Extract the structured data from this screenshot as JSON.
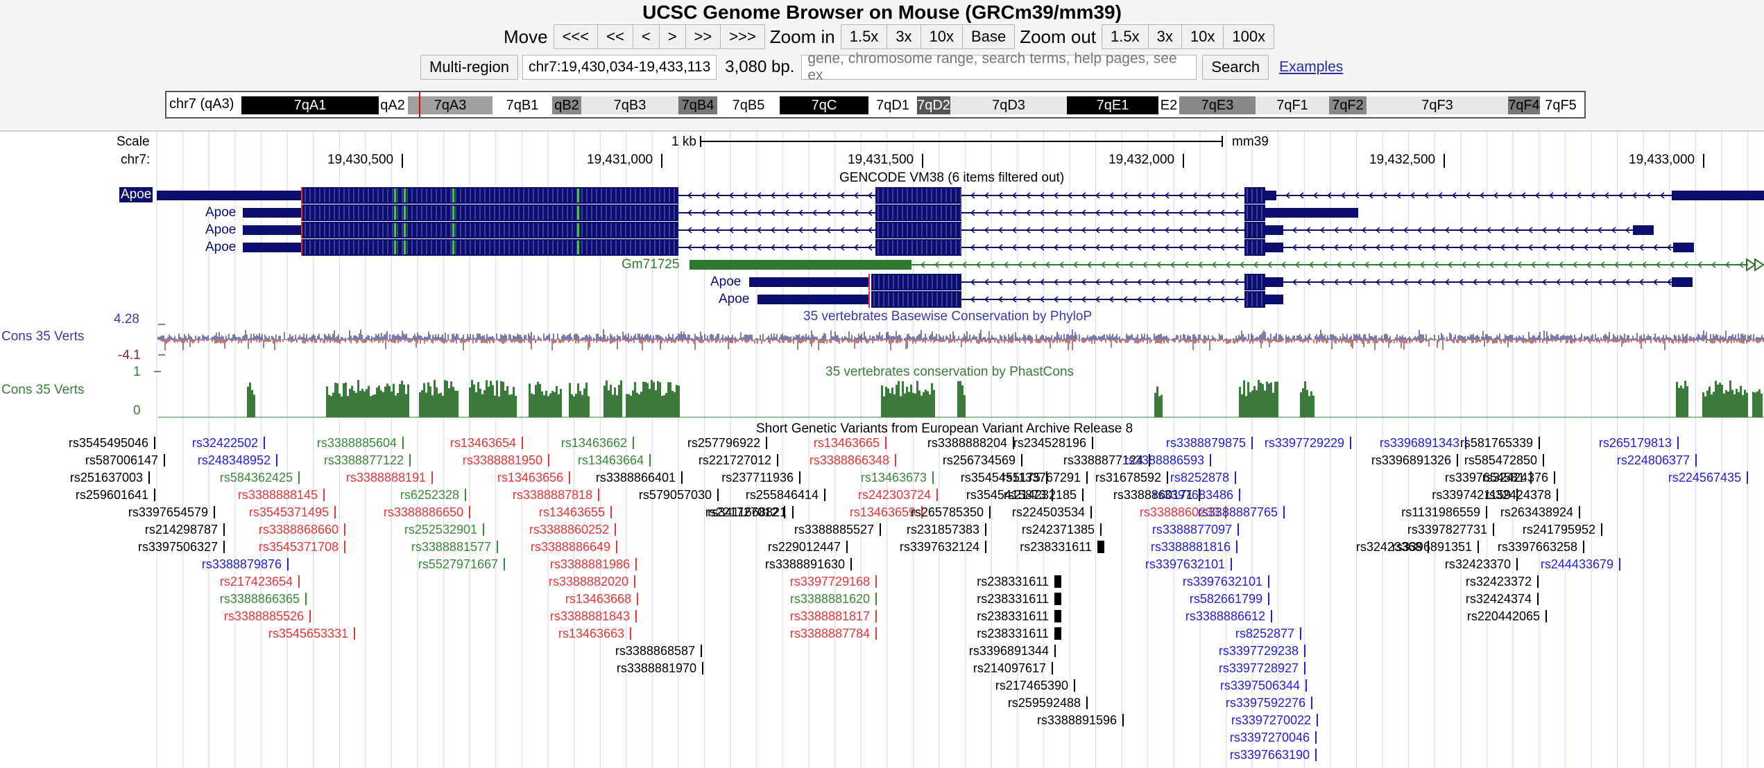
{
  "title": "UCSC Genome Browser on Mouse (GRCm39/mm39)",
  "nav": {
    "move_label": "Move",
    "move_buttons": [
      "<<<",
      "<<",
      "<",
      ">",
      ">>",
      ">>>"
    ],
    "zoom_in_label": "Zoom in",
    "zoom_in_buttons": [
      "1.5x",
      "3x",
      "10x",
      "Base"
    ],
    "zoom_out_label": "Zoom out",
    "zoom_out_buttons": [
      "1.5x",
      "3x",
      "10x",
      "100x"
    ]
  },
  "position": {
    "multi_region": "Multi-region",
    "coords": "chr7:19,430,034-19,433,113",
    "size": "3,080 bp.",
    "search_placeholder": "gene, chromosome range, search terms, help pages, see ex",
    "search_button": "Search",
    "examples_link": "Examples"
  },
  "ideogram": {
    "label": "chr7 (qA3)",
    "bands": [
      "7qA1",
      "qA2",
      "7qA3",
      "7qB1",
      "qB2",
      "7qB3",
      "7qB4",
      "7qB5",
      "7qC",
      "7qD1",
      "7qD2",
      "7qD3",
      "7qE1",
      "E2",
      "7qE3",
      "7qF1",
      "7qF2",
      "7qF3",
      "7qF4",
      "7qF5"
    ]
  },
  "tracks": {
    "scale_label": "Scale",
    "chrom_label": "chr7:",
    "scale_bar": "1 kb",
    "assembly": "mm39",
    "positions": [
      "19,430,500",
      "19,431,000",
      "19,431,500",
      "19,432,000",
      "19,432,500",
      "19,433,000"
    ],
    "gencode_title": "GENCODE VM38 (6 items filtered out)",
    "gene_apoe": "Apoe",
    "gene_gm": "Gm71725",
    "phylop_title": "35 vertebrates Basewise Conservation by PhyloP",
    "phylop_label": "Cons 35 Verts",
    "phylop_max": "4.28",
    "phylop_min": "-4.1",
    "phastcons_title": "35 vertebrates conservation by PhastCons",
    "phastcons_label": "Cons 35 Verts",
    "phastcons_max": "1",
    "phastcons_min": "0",
    "eva_title": "Short Genetic Variants from European Variant Archive Release 8"
  },
  "colors": {
    "gene": "#0d0d6e",
    "gm": "#2d7a2d",
    "phylop_pos": "#23237a",
    "phylop_neg": "#8b2020",
    "phastcons": "#3b7a3b",
    "snp_black": "#000000",
    "snp_blue": "#2323d0",
    "snp_green": "#3a8a3a",
    "snp_red": "#e03a3a"
  },
  "snps": [
    {
      "t": "rs3545495046",
      "c": "k"
    },
    {
      "t": "rs587006147",
      "c": "k"
    },
    {
      "t": "rs251637003",
      "c": "k"
    },
    {
      "t": "rs259601641",
      "c": "k"
    },
    {
      "t": "rs3397654579",
      "c": "k"
    },
    {
      "t": "rs214298787",
      "c": "k"
    },
    {
      "t": "rs3397506327",
      "c": "k"
    },
    {
      "t": "rs32422502",
      "c": "b"
    },
    {
      "t": "rs248348952",
      "c": "b"
    },
    {
      "t": "rs584362425",
      "c": "g"
    },
    {
      "t": "rs3388888145",
      "c": "r"
    },
    {
      "t": "rs3545371495",
      "c": "r"
    },
    {
      "t": "rs3388868660",
      "c": "r"
    },
    {
      "t": "rs3545371708",
      "c": "r"
    },
    {
      "t": "rs3388879876",
      "c": "b"
    },
    {
      "t": "rs217423654",
      "c": "r"
    },
    {
      "t": "rs3388866365",
      "c": "g"
    },
    {
      "t": "rs3388885526",
      "c": "r"
    },
    {
      "t": "rs3545653331",
      "c": "r"
    },
    {
      "t": "rs3388885604",
      "c": "g"
    },
    {
      "t": "rs3388877122",
      "c": "g"
    },
    {
      "t": "rs3388888191",
      "c": "r"
    },
    {
      "t": "rs6252328",
      "c": "g"
    },
    {
      "t": "rs3388886650",
      "c": "r"
    },
    {
      "t": "rs252532901",
      "c": "g"
    },
    {
      "t": "rs3388881577",
      "c": "g"
    },
    {
      "t": "rs5527971667",
      "c": "g"
    },
    {
      "t": "rs13463654",
      "c": "r"
    },
    {
      "t": "rs3388881950",
      "c": "r"
    },
    {
      "t": "rs13463656",
      "c": "r"
    },
    {
      "t": "rs3388887818",
      "c": "r"
    },
    {
      "t": "rs13463655",
      "c": "r"
    },
    {
      "t": "rs3388860252",
      "c": "r"
    },
    {
      "t": "rs3388886649",
      "c": "r"
    },
    {
      "t": "rs3388881986",
      "c": "r"
    },
    {
      "t": "rs3388882020",
      "c": "r"
    },
    {
      "t": "rs13463668",
      "c": "r"
    },
    {
      "t": "rs3388881843",
      "c": "r"
    },
    {
      "t": "rs13463663",
      "c": "r"
    },
    {
      "t": "rs13463662",
      "c": "g"
    },
    {
      "t": "rs13463664",
      "c": "g"
    },
    {
      "t": "rs3388866401",
      "c": "k"
    },
    {
      "t": "rs579057030",
      "c": "k"
    },
    {
      "t": "rs3411668821",
      "c": "k"
    },
    {
      "t": "rs3388868587",
      "c": "k"
    },
    {
      "t": "rs3388881970",
      "c": "k"
    },
    {
      "t": "rs257796922",
      "c": "k"
    },
    {
      "t": "rs221727012",
      "c": "k"
    },
    {
      "t": "rs237711936",
      "c": "k"
    },
    {
      "t": "rs255846414",
      "c": "k"
    },
    {
      "t": "rs221727012",
      "c": "k"
    },
    {
      "t": "rs3388885527",
      "c": "k"
    },
    {
      "t": "rs229012447",
      "c": "k"
    },
    {
      "t": "rs3388891630",
      "c": "k"
    },
    {
      "t": "rs13463665",
      "c": "r"
    },
    {
      "t": "rs3388866348",
      "c": "r"
    },
    {
      "t": "rs13463673",
      "c": "g"
    },
    {
      "t": "rs242303724",
      "c": "r"
    },
    {
      "t": "rs13463659",
      "c": "r"
    },
    {
      "t": "rs3397729168",
      "c": "r"
    },
    {
      "t": "rs3388881620",
      "c": "g"
    },
    {
      "t": "rs3388881817",
      "c": "r"
    },
    {
      "t": "rs3388887784",
      "c": "r"
    },
    {
      "t": "rs3388888204",
      "c": "k"
    },
    {
      "t": "rs256734569",
      "c": "k"
    },
    {
      "t": "rs3545455175",
      "c": "k"
    },
    {
      "t": "rs3545415873",
      "c": "k"
    },
    {
      "t": "rs265785350",
      "c": "k"
    },
    {
      "t": "rs231857383",
      "c": "k"
    },
    {
      "t": "rs3397632124",
      "c": "k"
    },
    {
      "t": "rs234528196",
      "c": "k"
    },
    {
      "t": "rs1133767291",
      "c": "k"
    },
    {
      "t": "rs214232185",
      "c": "k"
    },
    {
      "t": "rs224503534",
      "c": "k"
    },
    {
      "t": "rs242371385",
      "c": "k"
    },
    {
      "t": "rs238331611",
      "c": "k"
    },
    {
      "t": "rs238331611",
      "c": "k"
    },
    {
      "t": "rs238331611",
      "c": "k"
    },
    {
      "t": "rs238331611",
      "c": "k"
    },
    {
      "t": "rs238331611",
      "c": "k"
    },
    {
      "t": "rs3396891344",
      "c": "k"
    },
    {
      "t": "rs214097617",
      "c": "k"
    },
    {
      "t": "rs217465390",
      "c": "k"
    },
    {
      "t": "rs259592488",
      "c": "k"
    },
    {
      "t": "rs3388891596",
      "c": "k"
    },
    {
      "t": "rs3388877124",
      "c": "k"
    },
    {
      "t": "rs31678592",
      "c": "k"
    },
    {
      "t": "rs3388860171",
      "c": "k"
    },
    {
      "t": "rs3388860233",
      "c": "r"
    },
    {
      "t": "rs3388879875",
      "c": "b"
    },
    {
      "t": "rs3388886593",
      "c": "b"
    },
    {
      "t": "rs8252878",
      "c": "b"
    },
    {
      "t": "rs3397683486",
      "c": "b"
    },
    {
      "t": "rs3388887765",
      "c": "b"
    },
    {
      "t": "rs3388877097",
      "c": "b"
    },
    {
      "t": "rs3388881816",
      "c": "b"
    },
    {
      "t": "rs3397632101",
      "c": "b"
    },
    {
      "t": "rs3397632101",
      "c": "b"
    },
    {
      "t": "rs582661799",
      "c": "b"
    },
    {
      "t": "rs3388886612",
      "c": "b"
    },
    {
      "t": "rs8252877",
      "c": "b"
    },
    {
      "t": "rs3397729229",
      "c": "b"
    },
    {
      "t": "rs3397729238",
      "c": "b"
    },
    {
      "t": "rs3397728927",
      "c": "b"
    },
    {
      "t": "rs3397506344",
      "c": "b"
    },
    {
      "t": "rs3397592276",
      "c": "b"
    },
    {
      "t": "rs3397270022",
      "c": "b"
    },
    {
      "t": "rs3397270046",
      "c": "b"
    },
    {
      "t": "rs3397663190",
      "c": "b"
    },
    {
      "t": "rs3396891343",
      "c": "b"
    },
    {
      "t": "rs3396891326",
      "c": "k"
    },
    {
      "t": "rs32423368",
      "c": "k"
    },
    {
      "t": "rs3397654581",
      "c": "k"
    },
    {
      "t": "rs3397421159",
      "c": "k"
    },
    {
      "t": "rs1131986559",
      "c": "k"
    },
    {
      "t": "rs3397827731",
      "c": "k"
    },
    {
      "t": "rs3396891351",
      "c": "k"
    },
    {
      "t": "rs32423370",
      "c": "k"
    },
    {
      "t": "rs32423372",
      "c": "k"
    },
    {
      "t": "rs32424374",
      "c": "k"
    },
    {
      "t": "rs220442065",
      "c": "k"
    },
    {
      "t": "rs581765339",
      "c": "k"
    },
    {
      "t": "rs585472850",
      "c": "k"
    },
    {
      "t": "rs32424376",
      "c": "k"
    },
    {
      "t": "rs32424378",
      "c": "k"
    },
    {
      "t": "rs263438924",
      "c": "k"
    },
    {
      "t": "rs241795952",
      "c": "k"
    },
    {
      "t": "rs3397663258",
      "c": "k"
    },
    {
      "t": "rs244433679",
      "c": "b"
    },
    {
      "t": "rs265179813",
      "c": "b"
    },
    {
      "t": "rs224806377",
      "c": "b"
    },
    {
      "t": "rs224567435",
      "c": "b"
    }
  ]
}
